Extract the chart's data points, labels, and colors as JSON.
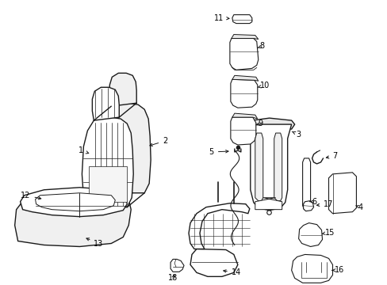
{
  "bg_color": "#ffffff",
  "line_color": "#1a1a1a",
  "text_color": "#000000",
  "figsize": [
    4.89,
    3.6
  ],
  "dpi": 100,
  "lw_main": 1.0,
  "lw_detail": 0.5,
  "fontsize": 7.0
}
